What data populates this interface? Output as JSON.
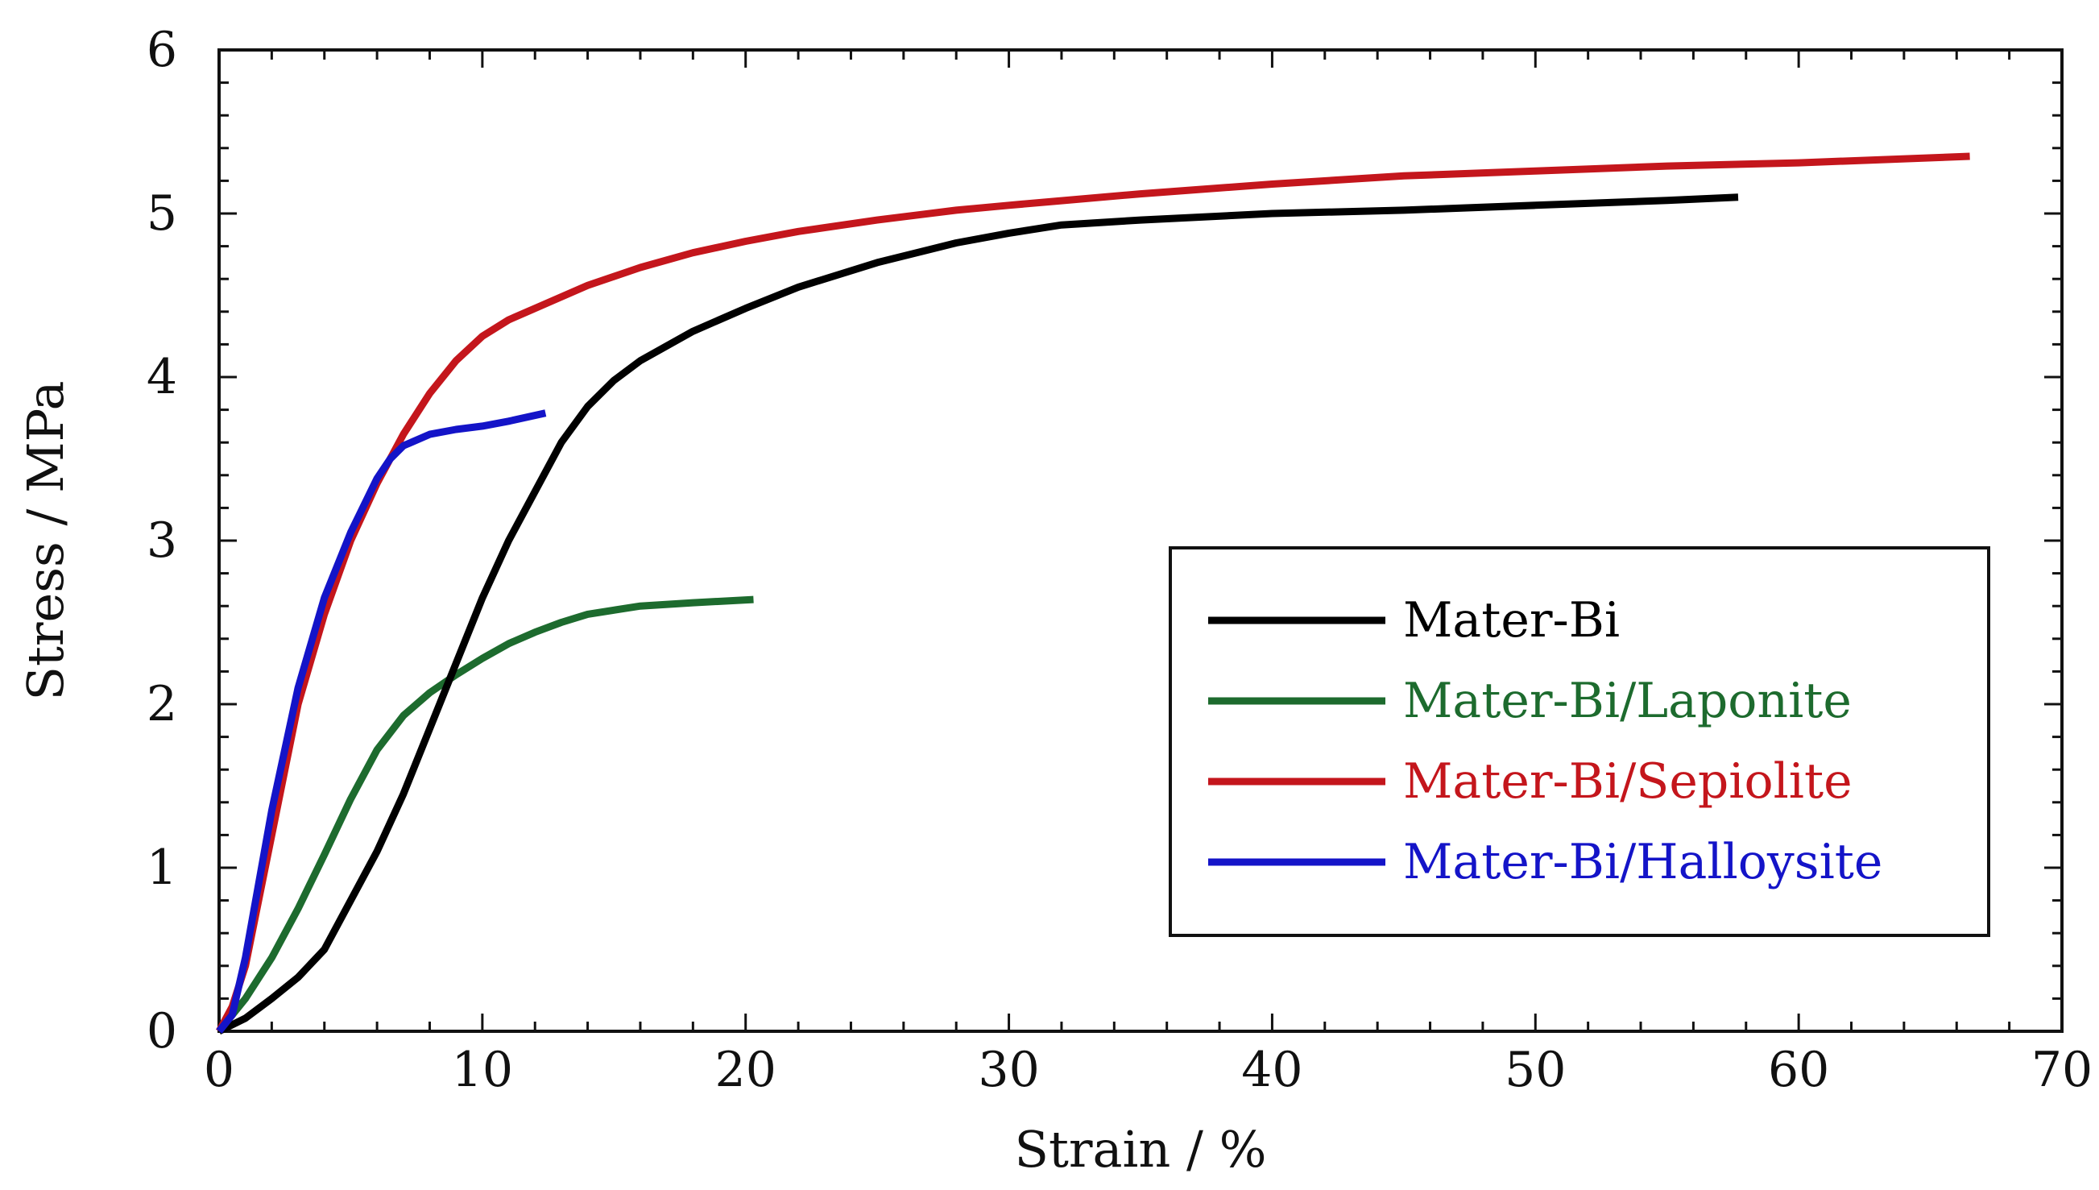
{
  "chart_data": {
    "type": "line",
    "title": "",
    "xlabel": "Strain / %",
    "ylabel": "Stress / MPa",
    "xlim": [
      0,
      70
    ],
    "ylim": [
      0,
      6
    ],
    "xticks": [
      0,
      10,
      20,
      30,
      40,
      50,
      60,
      70
    ],
    "yticks": [
      0,
      1,
      2,
      3,
      4,
      5,
      6
    ],
    "grid": false,
    "legend_position": "lower-right",
    "series": [
      {
        "name": "Mater-Bi",
        "color": "#000000",
        "x": [
          0,
          1,
          2,
          3,
          4,
          5,
          6,
          7,
          8,
          9,
          10,
          11,
          12,
          13,
          14,
          15,
          16,
          18,
          20,
          22,
          25,
          28,
          30,
          32,
          35,
          40,
          45,
          50,
          55,
          57.7
        ],
        "y": [
          0,
          0.08,
          0.2,
          0.33,
          0.5,
          0.8,
          1.1,
          1.45,
          1.85,
          2.25,
          2.65,
          3.0,
          3.3,
          3.6,
          3.82,
          3.98,
          4.1,
          4.28,
          4.42,
          4.55,
          4.7,
          4.82,
          4.88,
          4.93,
          4.96,
          5.0,
          5.02,
          5.05,
          5.08,
          5.1
        ]
      },
      {
        "name": "Mater-Bi/Laponite",
        "color": "#1d6b2e",
        "x": [
          0,
          1,
          2,
          3,
          4,
          5,
          6,
          7,
          8,
          9,
          10,
          11,
          12,
          13,
          14,
          16,
          18,
          20.3
        ],
        "y": [
          0,
          0.2,
          0.45,
          0.75,
          1.08,
          1.42,
          1.72,
          1.93,
          2.07,
          2.18,
          2.28,
          2.37,
          2.44,
          2.5,
          2.55,
          2.6,
          2.62,
          2.64
        ]
      },
      {
        "name": "Mater-Bi/Sepiolite",
        "color": "#c4161c",
        "x": [
          0,
          0.5,
          1,
          2,
          3,
          4,
          5,
          6,
          7,
          8,
          9,
          10,
          11,
          12,
          14,
          16,
          18,
          20,
          22,
          25,
          28,
          30,
          35,
          40,
          45,
          50,
          55,
          60,
          66.5
        ],
        "y": [
          0,
          0.15,
          0.4,
          1.2,
          2.0,
          2.55,
          3.0,
          3.35,
          3.65,
          3.9,
          4.1,
          4.25,
          4.35,
          4.42,
          4.56,
          4.67,
          4.76,
          4.83,
          4.89,
          4.96,
          5.02,
          5.05,
          5.12,
          5.18,
          5.23,
          5.26,
          5.29,
          5.31,
          5.35
        ]
      },
      {
        "name": "Mater-Bi/Halloysite",
        "color": "#1414c8",
        "x": [
          0,
          0.5,
          1,
          2,
          3,
          4,
          5,
          6,
          6.5,
          7,
          8,
          9,
          10,
          11,
          12.4
        ],
        "y": [
          0,
          0.1,
          0.45,
          1.35,
          2.1,
          2.65,
          3.05,
          3.38,
          3.5,
          3.58,
          3.65,
          3.68,
          3.7,
          3.73,
          3.78
        ]
      }
    ]
  }
}
